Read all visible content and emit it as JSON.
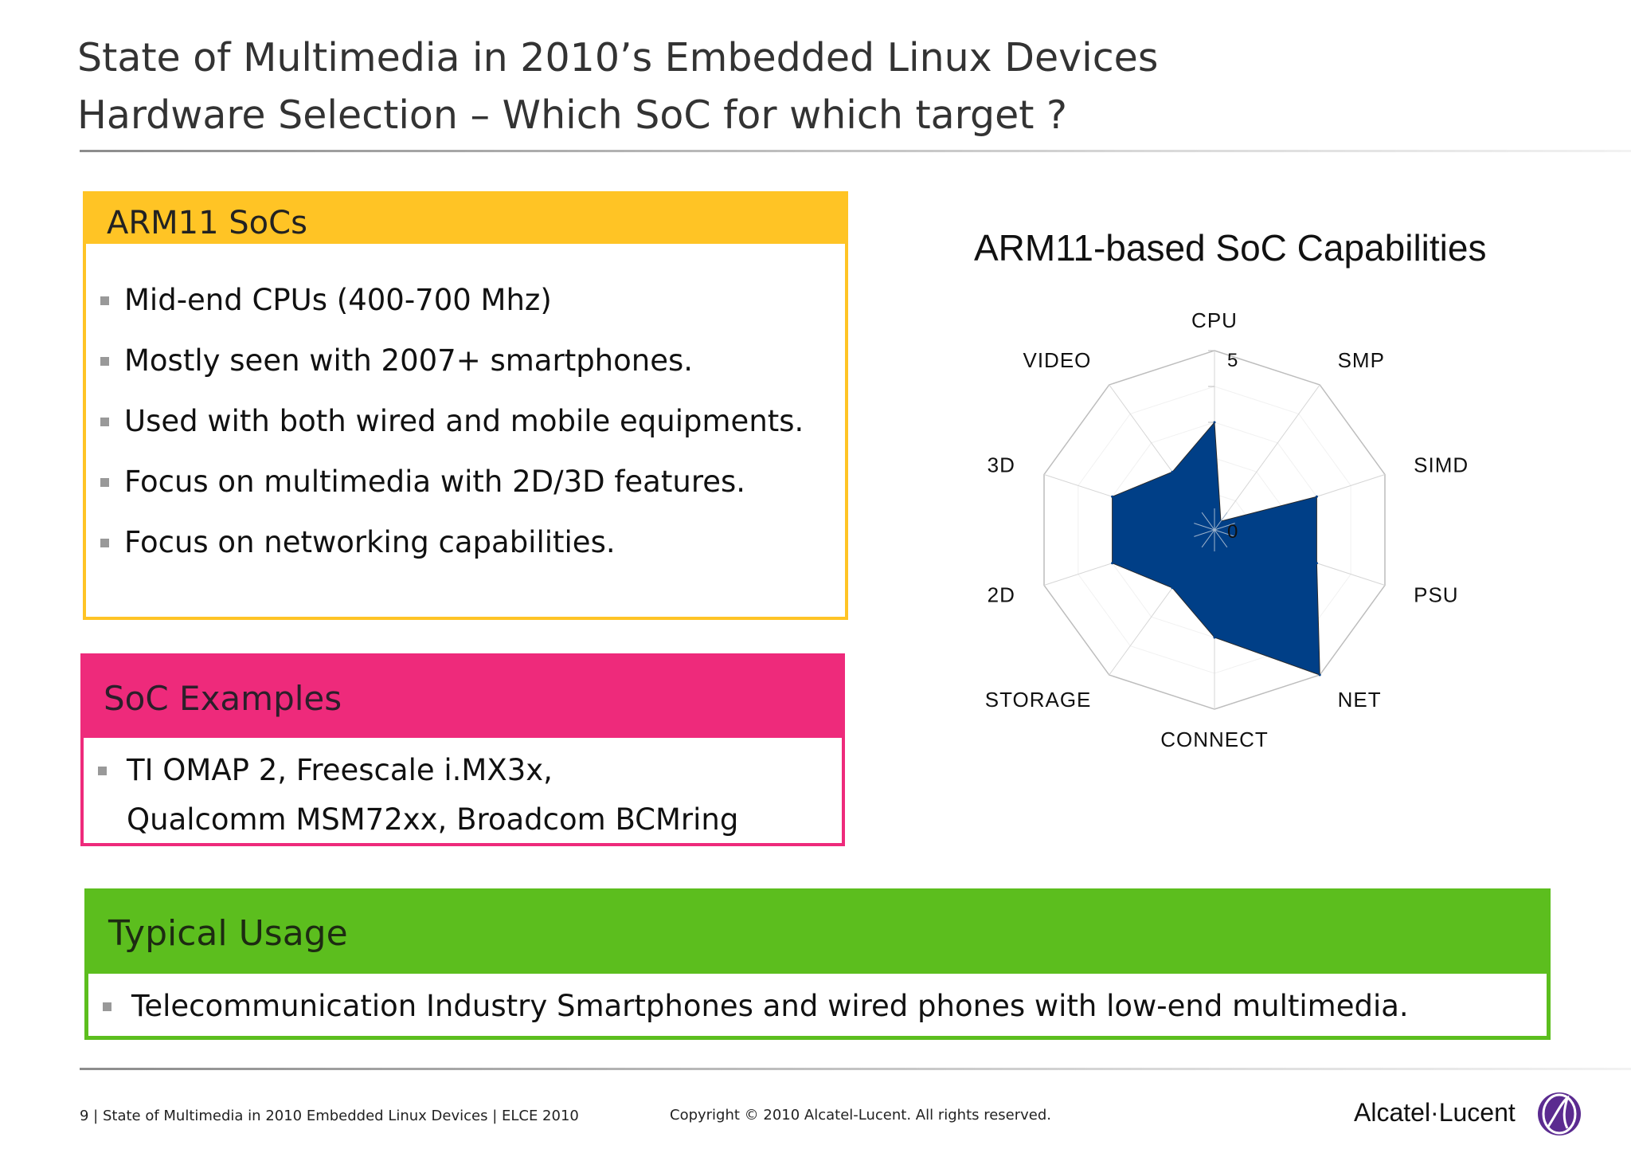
{
  "header": {
    "title_line1": "State of Multimedia in 2010’s Embedded Linux Devices",
    "title_line2": "Hardware Selection – Which SoC for which target ?"
  },
  "arm11_box": {
    "title": "ARM11 SoCs",
    "bullets": [
      "Mid-end CPUs (400-700 Mhz)",
      "Mostly seen with 2007+ smartphones.",
      "Used with both wired and mobile equipments.",
      "Focus on multimedia with 2D/3D features.",
      "Focus on networking capabilities."
    ],
    "accent": "#ffc425"
  },
  "soc_box": {
    "title": "SoC Examples",
    "bullet_line1": "TI OMAP 2, Freescale i.MX3x,",
    "bullet_line2": "Qualcomm MSM72xx, Broadcom BCMring",
    "accent": "#ee2a7b"
  },
  "usage_box": {
    "title": "Typical Usage",
    "bullet": "Telecommunication Industry Smartphones and wired phones with low-end multimedia.",
    "accent": "#5cbe1e"
  },
  "chart_data": {
    "type": "radar",
    "title": "ARM11-based SoC Capabilities",
    "categories": [
      "CPU",
      "SMP",
      "SIMD",
      "PSU",
      "NET",
      "CONNECT",
      "STORAGE",
      "2D",
      "3D",
      "VIDEO"
    ],
    "series": [
      {
        "values": [
          3,
          0.3,
          3,
          3,
          5,
          3,
          2,
          3,
          3,
          2
        ],
        "color": "#003f87"
      }
    ],
    "range": [
      0,
      5
    ],
    "tick_labels": [
      "0",
      "5"
    ],
    "grid": true,
    "legend": "none"
  },
  "footer": {
    "left": "9 | State of Multimedia in 2010 Embedded Linux Devices | ELCE 2010",
    "center": "Copyright © 2010 Alcatel-Lucent. All rights reserved.",
    "logo_text": "Alcatel·Lucent",
    "logo_icon": "alcatel-lucent-logo-icon"
  }
}
